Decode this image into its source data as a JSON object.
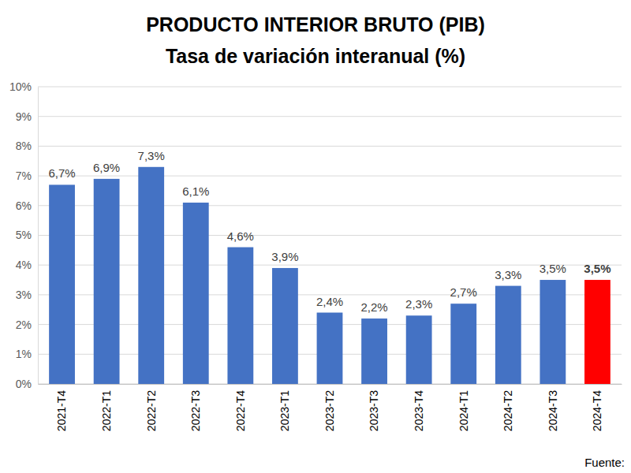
{
  "chart_data": {
    "type": "bar",
    "title": "PRODUCTO INTERIOR BRUTO (PIB)",
    "subtitle": "Tasa de variación interanual (%)",
    "categories": [
      "2021-T4",
      "2022-T1",
      "2022-T2",
      "2022-T3",
      "2022-T4",
      "2023-T1",
      "2023-T2",
      "2023-T3",
      "2023-T4",
      "2024-T1",
      "2024-T2",
      "2024-T3",
      "2024-T4"
    ],
    "values": [
      6.7,
      6.9,
      7.3,
      6.1,
      4.6,
      3.9,
      2.4,
      2.2,
      2.3,
      2.7,
      3.3,
      3.5,
      3.5
    ],
    "value_labels": [
      "6,7%",
      "6,9%",
      "7,3%",
      "6,1%",
      "4,6%",
      "3,9%",
      "2,4%",
      "2,2%",
      "2,3%",
      "2,7%",
      "3,3%",
      "3,5%",
      "3,5%"
    ],
    "colors": [
      "#4472c4",
      "#4472c4",
      "#4472c4",
      "#4472c4",
      "#4472c4",
      "#4472c4",
      "#4472c4",
      "#4472c4",
      "#4472c4",
      "#4472c4",
      "#4472c4",
      "#4472c4",
      "#ff0000"
    ],
    "ylim": [
      0,
      10
    ],
    "yticks": [
      {
        "value": 0,
        "label": "0%"
      },
      {
        "value": 1,
        "label": "1%"
      },
      {
        "value": 2,
        "label": "2%"
      },
      {
        "value": 3,
        "label": "3%"
      },
      {
        "value": 4,
        "label": "4%"
      },
      {
        "value": 5,
        "label": "5%"
      },
      {
        "value": 6,
        "label": "6%"
      },
      {
        "value": 7,
        "label": "7%"
      },
      {
        "value": 8,
        "label": "8%"
      },
      {
        "value": 9,
        "label": "9%"
      },
      {
        "value": 10,
        "label": "10%"
      }
    ],
    "grid": true,
    "data_labels": true,
    "annotations": [
      "Fuente:"
    ]
  }
}
